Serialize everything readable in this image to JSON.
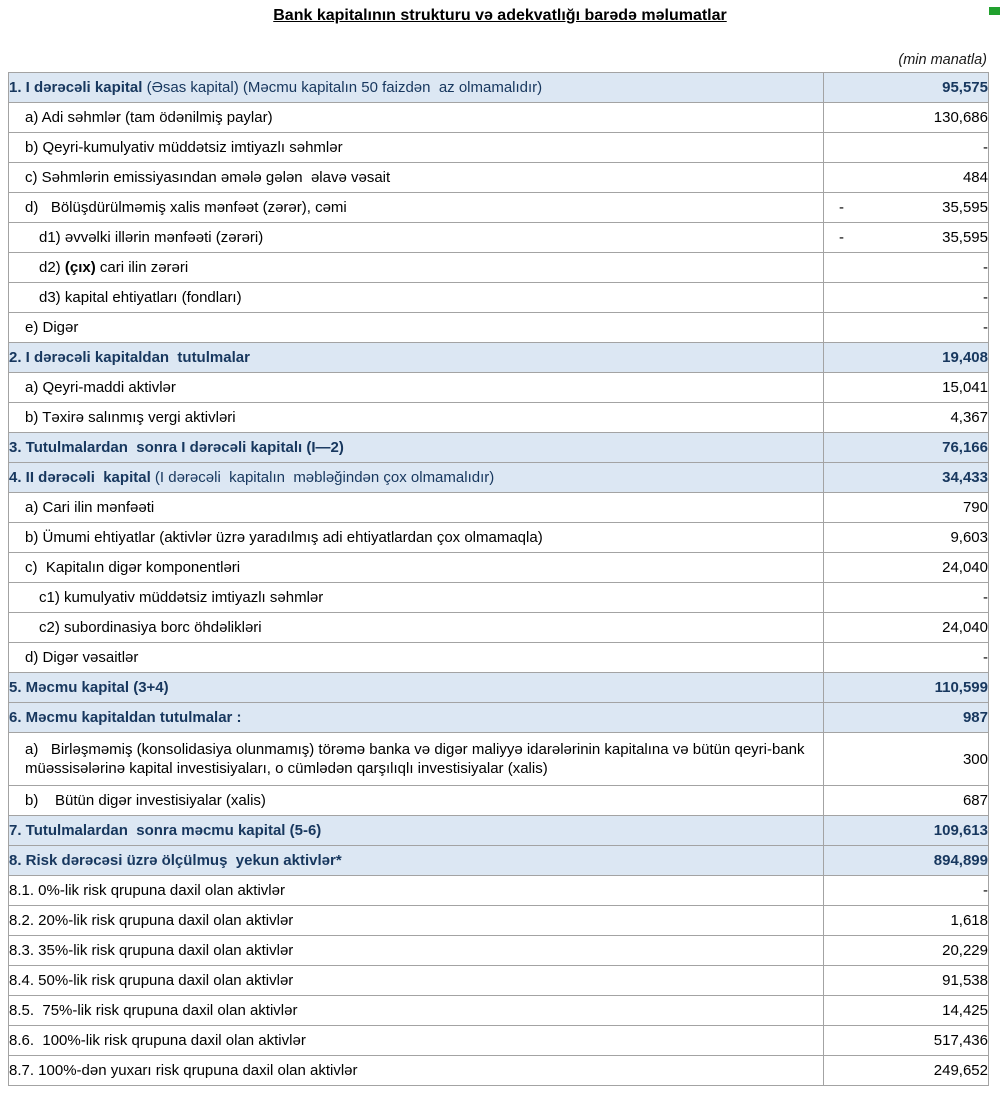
{
  "page": {
    "title": "Bank kapitalının strukturu və adekvatlığı barədə məlumatlar",
    "unit_note": "(min manatla)"
  },
  "colors": {
    "header_row_bg": "#dce7f3",
    "header_row_text": "#17375e",
    "table_border": "#a3a3a3",
    "corner_artifact_green": "#21a12e"
  },
  "table": {
    "rows": [
      {
        "kind": "section",
        "indent": 0,
        "parts": [
          {
            "t": "1. I dərəcəli kapital",
            "b": true
          },
          {
            "t": " (Əsas kapital) (Məcmu kapitalın 50 faizdən  az olmamalıdır)",
            "b": false
          }
        ],
        "value": "95,575",
        "neg": false
      },
      {
        "kind": "item",
        "indent": 1,
        "parts": [
          {
            "t": "a) Adi səhmlər (tam ödənilmiş paylar)",
            "b": false
          }
        ],
        "value": "130,686",
        "neg": false
      },
      {
        "kind": "item",
        "indent": 1,
        "parts": [
          {
            "t": "b) Qeyri-kumulyativ müddətsiz imtiyazlı səhmlər",
            "b": false
          }
        ],
        "value": "-",
        "neg": false
      },
      {
        "kind": "item",
        "indent": 1,
        "parts": [
          {
            "t": "c) Səhmlərin emissiyasından əmələ gələn  əlavə vəsait",
            "b": false
          }
        ],
        "value": "484",
        "neg": false
      },
      {
        "kind": "item",
        "indent": 1,
        "parts": [
          {
            "t": "d)   Bölüşdürülməmiş xalis mənfəət (zərər), cəmi",
            "b": false
          }
        ],
        "value": "35,595",
        "neg": true
      },
      {
        "kind": "item",
        "indent": 2,
        "parts": [
          {
            "t": "d1) əvvəlki illərin mənfəəti (zərəri)",
            "b": false
          }
        ],
        "value": "35,595",
        "neg": true
      },
      {
        "kind": "item",
        "indent": 2,
        "parts": [
          {
            "t": "d2) ",
            "b": false
          },
          {
            "t": "(çıx)",
            "b": true
          },
          {
            "t": " cari ilin zərəri",
            "b": false
          }
        ],
        "value": "-",
        "neg": false
      },
      {
        "kind": "item",
        "indent": 2,
        "parts": [
          {
            "t": "d3) kapital ehtiyatları (fondları)",
            "b": false
          }
        ],
        "value": "-",
        "neg": false
      },
      {
        "kind": "item",
        "indent": 1,
        "parts": [
          {
            "t": "e) Digər",
            "b": false
          }
        ],
        "value": "-",
        "neg": false
      },
      {
        "kind": "section",
        "indent": 0,
        "parts": [
          {
            "t": "2. I dərəcəli kapitaldan  tutulmalar",
            "b": true
          }
        ],
        "value": "19,408",
        "neg": false
      },
      {
        "kind": "item",
        "indent": 1,
        "parts": [
          {
            "t": "a) Qeyri-maddi aktivlər",
            "b": false
          }
        ],
        "value": "15,041",
        "neg": false
      },
      {
        "kind": "item",
        "indent": 1,
        "parts": [
          {
            "t": "b) Təxirə salınmış vergi aktivləri",
            "b": false
          }
        ],
        "value": "4,367",
        "neg": false
      },
      {
        "kind": "section",
        "indent": 0,
        "parts": [
          {
            "t": "3. Tutulmalardan  sonra I dərəcəli kapitalı (I—2)",
            "b": true
          }
        ],
        "value": "76,166",
        "neg": false
      },
      {
        "kind": "section",
        "indent": 0,
        "parts": [
          {
            "t": "4. II dərəcəli  kapital",
            "b": true
          },
          {
            "t": " (I dərəcəli  kapitalın  məbləğindən çox olmamalıdır)",
            "b": false
          }
        ],
        "value": "34,433",
        "neg": false
      },
      {
        "kind": "item",
        "indent": 1,
        "parts": [
          {
            "t": "a) Cari ilin mənfəəti",
            "b": false
          }
        ],
        "value": "790",
        "neg": false
      },
      {
        "kind": "item",
        "indent": 1,
        "parts": [
          {
            "t": "b) Ümumi ehtiyatlar (aktivlər üzrə yaradılmış adi ehtiyatlardan çox olmamaqla)",
            "b": false
          }
        ],
        "value": "9,603",
        "neg": false
      },
      {
        "kind": "item",
        "indent": 1,
        "parts": [
          {
            "t": "c)  Kapitalın digər komponentləri",
            "b": false
          }
        ],
        "value": "24,040",
        "neg": false
      },
      {
        "kind": "item",
        "indent": 2,
        "parts": [
          {
            "t": "c1) kumulyativ müddətsiz imtiyazlı səhmlər",
            "b": false
          }
        ],
        "value": "-",
        "neg": false
      },
      {
        "kind": "item",
        "indent": 2,
        "parts": [
          {
            "t": "c2) subordinasiya borc öhdəlikləri",
            "b": false
          }
        ],
        "value": "24,040",
        "neg": false
      },
      {
        "kind": "item",
        "indent": 1,
        "parts": [
          {
            "t": "d) Digər vəsaitlər",
            "b": false
          }
        ],
        "value": "-",
        "neg": false
      },
      {
        "kind": "section",
        "indent": 0,
        "parts": [
          {
            "t": "5. Məcmu kapital (3+4)",
            "b": true
          }
        ],
        "value": "110,599",
        "neg": false
      },
      {
        "kind": "section",
        "indent": 0,
        "parts": [
          {
            "t": "6. Məcmu kapitaldan tutulmalar :",
            "b": true
          }
        ],
        "value": "987",
        "neg": false
      },
      {
        "kind": "item",
        "indent": 1,
        "tall": true,
        "parts": [
          {
            "t": "a)   Birləşməmiş (konsolidasiya olunmamış) törəmə banka və digər maliyyə idarələrinin kapitalına və bütün qeyri-bank müəssisələrinə kapital investisiyaları, o cümlədən qarşılıqlı investisiyalar (xalis)",
            "b": false
          }
        ],
        "value": "300",
        "neg": false
      },
      {
        "kind": "item",
        "indent": 1,
        "parts": [
          {
            "t": "b)    Bütün digər investisiyalar (xalis)",
            "b": false
          }
        ],
        "value": "687",
        "neg": false
      },
      {
        "kind": "section",
        "indent": 0,
        "parts": [
          {
            "t": "7. Tutulmalardan  sonra məcmu kapital (5-6)",
            "b": true
          }
        ],
        "value": "109,613",
        "neg": false
      },
      {
        "kind": "section",
        "indent": 0,
        "parts": [
          {
            "t": "8. Risk dərəcəsi üzrə ölçülmuş  yekun aktivlər*",
            "b": true
          }
        ],
        "value": "894,899",
        "neg": false
      },
      {
        "kind": "item",
        "indent": 0,
        "parts": [
          {
            "t": "8.1. 0%-lik risk qrupuna daxil olan aktivlər",
            "b": false
          }
        ],
        "value": "-",
        "neg": false
      },
      {
        "kind": "item",
        "indent": 0,
        "parts": [
          {
            "t": "8.2. 20%-lik risk qrupuna daxil olan aktivlər",
            "b": false
          }
        ],
        "value": "1,618",
        "neg": false
      },
      {
        "kind": "item",
        "indent": 0,
        "parts": [
          {
            "t": "8.3. 35%-lik risk qrupuna daxil olan aktivlər",
            "b": false
          }
        ],
        "value": "20,229",
        "neg": false
      },
      {
        "kind": "item",
        "indent": 0,
        "parts": [
          {
            "t": "8.4. 50%-lik risk qrupuna daxil olan aktivlər",
            "b": false
          }
        ],
        "value": "91,538",
        "neg": false
      },
      {
        "kind": "item",
        "indent": 0,
        "parts": [
          {
            "t": "8.5.  75%-lik risk qrupuna daxil olan aktivlər",
            "b": false
          }
        ],
        "value": "14,425",
        "neg": false
      },
      {
        "kind": "item",
        "indent": 0,
        "parts": [
          {
            "t": "8.6.  100%-lik risk qrupuna daxil olan aktivlər",
            "b": false
          }
        ],
        "value": "517,436",
        "neg": false
      },
      {
        "kind": "item",
        "indent": 0,
        "parts": [
          {
            "t": "8.7. 100%-dən yuxarı risk qrupuna daxil olan aktivlər",
            "b": false
          }
        ],
        "value": "249,652",
        "neg": false
      }
    ]
  }
}
